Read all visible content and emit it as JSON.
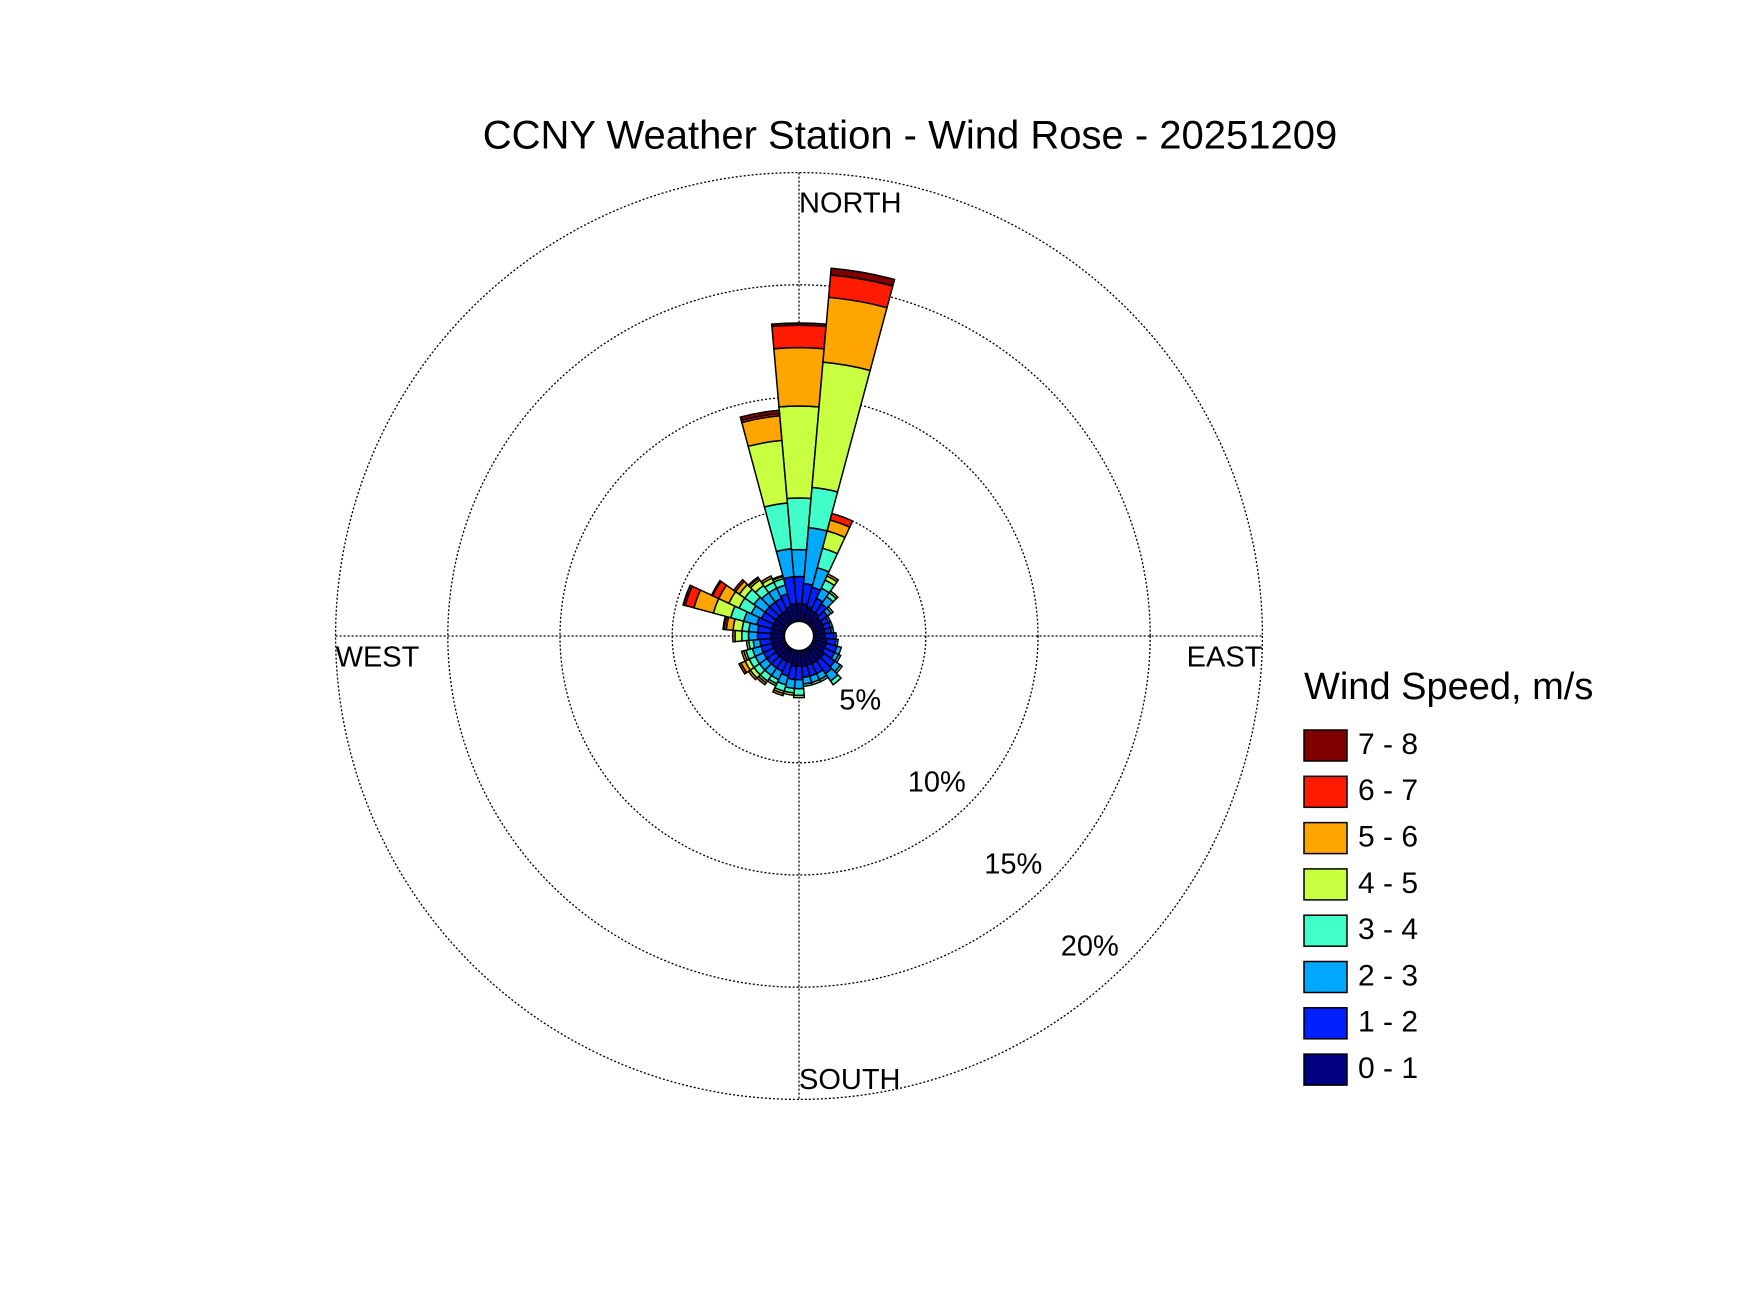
{
  "chart_data": {
    "type": "windrose",
    "title": "CCNY Weather Station - Wind Rose - 20251209",
    "direction_labels": {
      "north": "NORTH",
      "east": "EAST",
      "south": "SOUTH",
      "west": "WEST"
    },
    "x": [
      0,
      10,
      20,
      30,
      40,
      50,
      60,
      70,
      80,
      90,
      100,
      110,
      120,
      130,
      140,
      150,
      160,
      170,
      180,
      190,
      200,
      210,
      220,
      230,
      240,
      250,
      260,
      270,
      280,
      290,
      300,
      310,
      320,
      330,
      340,
      350
    ],
    "rlim": [
      0,
      20
    ],
    "rticks": [
      {
        "value": 5,
        "label": "5%"
      },
      {
        "value": 10,
        "label": "10%"
      },
      {
        "value": 15,
        "label": "15%"
      },
      {
        "value": 20,
        "label": "20%"
      }
    ],
    "grid": true,
    "legend_title": "Wind Speed, m/s",
    "series": [
      {
        "name": "0 - 1",
        "color": "#000080",
        "values": [
          0.8,
          0.8,
          0.7,
          0.6,
          0.6,
          0.5,
          0.5,
          0.5,
          0.5,
          0.5,
          0.6,
          0.6,
          0.6,
          0.7,
          0.7,
          0.7,
          0.7,
          0.7,
          0.7,
          0.7,
          0.6,
          0.6,
          0.6,
          0.6,
          0.6,
          0.6,
          0.6,
          0.6,
          0.6,
          0.6,
          0.6,
          0.6,
          0.6,
          0.6,
          0.7,
          0.8
        ]
      },
      {
        "name": "1 - 2",
        "color": "#0020ff",
        "values": [
          1.2,
          0.9,
          0.9,
          0.6,
          0.5,
          0.4,
          0.3,
          0.3,
          0.3,
          0.4,
          0.4,
          0.5,
          0.5,
          0.6,
          0.7,
          0.5,
          0.5,
          0.5,
          0.6,
          0.6,
          0.6,
          0.5,
          0.5,
          0.5,
          0.5,
          0.5,
          0.5,
          0.6,
          0.6,
          0.7,
          0.6,
          0.6,
          0.6,
          0.6,
          0.6,
          1.2
        ]
      },
      {
        "name": "2 - 3",
        "color": "#00a8ff",
        "values": [
          1.2,
          2.5,
          0.9,
          0.5,
          0.4,
          0.2,
          0.1,
          0.1,
          0.1,
          0.1,
          0.1,
          0.2,
          0.2,
          0.3,
          0.4,
          0.3,
          0.3,
          0.3,
          0.4,
          0.4,
          0.4,
          0.4,
          0.4,
          0.4,
          0.4,
          0.4,
          0.3,
          0.4,
          0.4,
          0.6,
          0.5,
          0.6,
          0.5,
          0.5,
          0.4,
          1.25
        ]
      },
      {
        "name": "3 - 4",
        "color": "#40ffc8",
        "values": [
          2.3,
          1.8,
          0.9,
          0.4,
          0.2,
          0.1,
          0,
          0,
          0,
          0,
          0,
          0,
          0.1,
          0.1,
          0.2,
          0.1,
          0.1,
          0.1,
          0.3,
          0.2,
          0.3,
          0.2,
          0.3,
          0.3,
          0.3,
          0.3,
          0.2,
          0.3,
          0.3,
          0.6,
          0.6,
          0.5,
          0.4,
          0.3,
          0.3,
          2.05
        ]
      },
      {
        "name": "4 - 5",
        "color": "#c8ff40",
        "values": [
          4.1,
          5.6,
          0.8,
          0.2,
          0.1,
          0,
          0,
          0,
          0,
          0,
          0,
          0,
          0,
          0,
          0,
          0,
          0,
          0,
          0.1,
          0.1,
          0.1,
          0.1,
          0.1,
          0.2,
          0.2,
          0.1,
          0.1,
          0.3,
          0.4,
          0.8,
          0.5,
          0.3,
          0.3,
          0.2,
          0.1,
          2.8
        ]
      },
      {
        "name": "5 - 6",
        "color": "#ffa500",
        "values": [
          2.6,
          2.9,
          0.5,
          0.1,
          0,
          0,
          0,
          0,
          0,
          0,
          0,
          0,
          0,
          0,
          0,
          0,
          0,
          0,
          0,
          0,
          0.1,
          0,
          0.1,
          0.1,
          0.2,
          0.1,
          0,
          0.1,
          0.3,
          0.9,
          0.5,
          0.2,
          0.1,
          0.1,
          0.05,
          1.1
        ]
      },
      {
        "name": "6 - 7",
        "color": "#ff1a00",
        "values": [
          1.0,
          1.0,
          0.3,
          0,
          0,
          0,
          0,
          0,
          0,
          0,
          0,
          0,
          0,
          0,
          0,
          0,
          0,
          0,
          0,
          0,
          0,
          0,
          0,
          0,
          0.1,
          0,
          0,
          0,
          0.1,
          0.4,
          0.3,
          0.1,
          0.05,
          0,
          0,
          0.1
        ]
      },
      {
        "name": "7 - 8",
        "color": "#800000",
        "values": [
          0.1,
          0.3,
          0,
          0,
          0,
          0,
          0,
          0,
          0,
          0,
          0,
          0,
          0,
          0,
          0,
          0,
          0,
          0,
          0,
          0,
          0,
          0,
          0,
          0,
          0,
          0,
          0,
          0,
          0.05,
          0.1,
          0.05,
          0,
          0,
          0,
          0,
          0.15
        ]
      }
    ]
  }
}
